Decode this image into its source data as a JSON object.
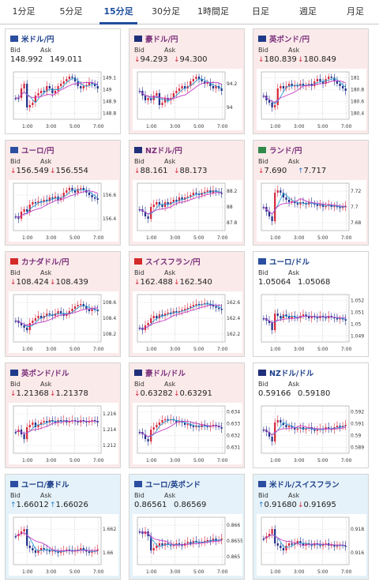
{
  "tabs": [
    "1分足",
    "5分足",
    "15分足",
    "30分足",
    "1時間足",
    "日足",
    "週足",
    "月足"
  ],
  "active_tab": 2,
  "labels": {
    "bid": "Bid",
    "ask": "Ask"
  },
  "colors": {
    "up": "#d6263a",
    "down": "#1f2f8a",
    "ma1": "#2a9fd6",
    "ma2": "#c43cc4",
    "accent": "#1f4e9e"
  },
  "x_ticks": [
    "1:00",
    "3:00",
    "5:00",
    "7:00"
  ],
  "cards": [
    {
      "name": "米ドル/円",
      "theme": "white",
      "flag": "us",
      "bid_dir": "",
      "ask_dir": "",
      "bid": "148.992",
      "ask": "149.011",
      "y_ticks": [
        "149.1",
        "149",
        "148.9",
        "148.8"
      ],
      "trend": [
        0.55,
        0.55,
        0.35,
        0.25,
        0.75,
        0.7,
        0.65,
        0.5,
        0.45,
        0.4,
        0.42,
        0.3,
        0.35,
        0.45,
        0.4,
        0.3,
        0.25,
        0.2,
        0.15,
        0.1,
        0.12,
        0.2,
        0.3,
        0.35,
        0.3,
        0.28,
        0.22,
        0.25,
        0.3,
        0.35
      ]
    },
    {
      "name": "豪ドル/円",
      "theme": "pink",
      "flag": "au",
      "bid_dir": "down",
      "ask_dir": "down",
      "bid": "94.293",
      "ask": "94.300",
      "y_ticks": [
        "94.2",
        "94"
      ],
      "trend": [
        0.4,
        0.5,
        0.6,
        0.55,
        0.6,
        0.5,
        0.45,
        0.7,
        0.65,
        0.55,
        0.6,
        0.55,
        0.45,
        0.4,
        0.35,
        0.3,
        0.35,
        0.3,
        0.2,
        0.15,
        0.1,
        0.15,
        0.2,
        0.25,
        0.22,
        0.3,
        0.35,
        0.3,
        0.35,
        0.4
      ]
    },
    {
      "name": "英ポンド/円",
      "theme": "pink",
      "flag": "gb",
      "bid_dir": "down",
      "ask_dir": "down",
      "bid": "180.839",
      "ask": "180.849",
      "y_ticks": [
        "181",
        "180.8",
        "180.6",
        "180.4"
      ],
      "trend": [
        0.5,
        0.6,
        0.65,
        0.75,
        0.7,
        0.35,
        0.3,
        0.35,
        0.3,
        0.25,
        0.3,
        0.28,
        0.3,
        0.25,
        0.3,
        0.28,
        0.25,
        0.3,
        0.2,
        0.15,
        0.2,
        0.25,
        0.15,
        0.1,
        0.12,
        0.2,
        0.25,
        0.3,
        0.35,
        0.4
      ]
    },
    {
      "name": "ユーロ/円",
      "theme": "pink",
      "flag": "eu",
      "bid_dir": "down",
      "ask_dir": "down",
      "bid": "156.549",
      "ask": "156.554",
      "y_ticks": [
        "156.6",
        "156.4"
      ],
      "trend": [
        0.7,
        0.75,
        0.6,
        0.55,
        0.6,
        0.45,
        0.4,
        0.42,
        0.38,
        0.4,
        0.35,
        0.38,
        0.3,
        0.32,
        0.28,
        0.35,
        0.3,
        0.2,
        0.15,
        0.1,
        0.15,
        0.2,
        0.12,
        0.1,
        0.15,
        0.2,
        0.25,
        0.3,
        0.32,
        0.35
      ]
    },
    {
      "name": "NZドル/円",
      "theme": "pink",
      "flag": "nz",
      "bid_dir": "down",
      "ask_dir": "down",
      "bid": "88.161",
      "ask": "88.173",
      "y_ticks": [
        "88.2",
        "88",
        "87.8"
      ],
      "trend": [
        0.55,
        0.6,
        0.7,
        0.75,
        0.5,
        0.45,
        0.4,
        0.45,
        0.5,
        0.4,
        0.45,
        0.4,
        0.35,
        0.38,
        0.3,
        0.35,
        0.3,
        0.28,
        0.25,
        0.2,
        0.22,
        0.25,
        0.2,
        0.18,
        0.15,
        0.2,
        0.15,
        0.18,
        0.2,
        0.22
      ]
    },
    {
      "name": "ランド/円",
      "theme": "pink",
      "flag": "za",
      "bid_dir": "down",
      "ask_dir": "up",
      "bid": "7.690",
      "ask": "7.717",
      "y_ticks": [
        "7.72",
        "7.7",
        "7.68"
      ],
      "trend": [
        0.5,
        0.6,
        0.7,
        0.8,
        0.2,
        0.15,
        0.2,
        0.3,
        0.35,
        0.4,
        0.38,
        0.42,
        0.45,
        0.4,
        0.42,
        0.45,
        0.4,
        0.42,
        0.45,
        0.48,
        0.45,
        0.5,
        0.48,
        0.45,
        0.5,
        0.48,
        0.5,
        0.52,
        0.5,
        0.48
      ]
    },
    {
      "name": "カナダドル/円",
      "theme": "pink",
      "flag": "ca",
      "bid_dir": "down",
      "ask_dir": "down",
      "bid": "108.424",
      "ask": "108.439",
      "y_ticks": [
        "108.6",
        "108.4",
        "108.2"
      ],
      "trend": [
        0.55,
        0.6,
        0.65,
        0.7,
        0.75,
        0.6,
        0.55,
        0.5,
        0.45,
        0.5,
        0.45,
        0.4,
        0.42,
        0.45,
        0.4,
        0.35,
        0.4,
        0.45,
        0.4,
        0.35,
        0.3,
        0.25,
        0.22,
        0.2,
        0.25,
        0.3,
        0.35,
        0.3,
        0.32,
        0.35
      ]
    },
    {
      "name": "スイスフラン/円",
      "theme": "pink",
      "flag": "ch",
      "bid_dir": "down",
      "ask_dir": "down",
      "bid": "162.488",
      "ask": "162.540",
      "y_ticks": [
        "162.6",
        "162.4",
        "162.2"
      ],
      "trend": [
        0.7,
        0.75,
        0.65,
        0.6,
        0.5,
        0.45,
        0.5,
        0.42,
        0.45,
        0.4,
        0.38,
        0.4,
        0.35,
        0.38,
        0.35,
        0.32,
        0.3,
        0.28,
        0.25,
        0.22,
        0.2,
        0.22,
        0.2,
        0.18,
        0.2,
        0.22,
        0.25,
        0.28,
        0.3,
        0.32
      ]
    },
    {
      "name": "ユーロ/ドル",
      "theme": "white",
      "flag": "eu",
      "bid_dir": "",
      "ask_dir": "",
      "bid": "1.05064",
      "ask": "1.05068",
      "y_ticks": [
        "1.052",
        "1.051",
        "1.05",
        "1.049"
      ],
      "trend": [
        0.5,
        0.55,
        0.6,
        0.75,
        0.4,
        0.45,
        0.5,
        0.42,
        0.45,
        0.5,
        0.45,
        0.48,
        0.5,
        0.45,
        0.42,
        0.45,
        0.5,
        0.45,
        0.48,
        0.5,
        0.45,
        0.48,
        0.5,
        0.45,
        0.48,
        0.5,
        0.52,
        0.5,
        0.52,
        0.55
      ]
    },
    {
      "name": "英ポンド/ドル",
      "theme": "pink",
      "flag": "gb",
      "bid_dir": "down",
      "ask_dir": "down",
      "bid": "1.21368",
      "ask": "1.21378",
      "y_ticks": [
        "1.216",
        "1.214",
        "1.212"
      ],
      "trend": [
        0.55,
        0.5,
        0.6,
        0.7,
        0.45,
        0.4,
        0.35,
        0.45,
        0.4,
        0.35,
        0.32,
        0.35,
        0.3,
        0.32,
        0.35,
        0.3,
        0.32,
        0.3,
        0.35,
        0.32,
        0.3,
        0.32,
        0.35,
        0.3,
        0.32,
        0.35,
        0.32,
        0.3,
        0.32,
        0.35
      ]
    },
    {
      "name": "豪ドル/ドル",
      "theme": "pink",
      "flag": "au",
      "bid_dir": "down",
      "ask_dir": "down",
      "bid": "0.63282",
      "ask": "0.63291",
      "y_ticks": [
        "0.634",
        "0.633",
        "0.632",
        "0.631"
      ],
      "trend": [
        0.55,
        0.6,
        0.7,
        0.75,
        0.5,
        0.45,
        0.4,
        0.35,
        0.3,
        0.28,
        0.3,
        0.28,
        0.3,
        0.35,
        0.32,
        0.35,
        0.4,
        0.38,
        0.42,
        0.45,
        0.42,
        0.45,
        0.4,
        0.42,
        0.45,
        0.42,
        0.4,
        0.42,
        0.45,
        0.48
      ]
    },
    {
      "name": "NZドル/ドル",
      "theme": "white",
      "flag": "nz",
      "bid_dir": "",
      "ask_dir": "",
      "bid": "0.59166",
      "ask": "0.59180",
      "y_ticks": [
        "0.592",
        "0.591",
        "0.59",
        "0.589"
      ],
      "trend": [
        0.5,
        0.55,
        0.65,
        0.75,
        0.35,
        0.3,
        0.35,
        0.4,
        0.45,
        0.42,
        0.45,
        0.5,
        0.48,
        0.45,
        0.5,
        0.48,
        0.45,
        0.5,
        0.52,
        0.5,
        0.48,
        0.5,
        0.45,
        0.48,
        0.5,
        0.45,
        0.42,
        0.45,
        0.42,
        0.4
      ]
    },
    {
      "name": "ユーロ/豪ドル",
      "theme": "blue",
      "flag": "eu",
      "bid_dir": "up",
      "ask_dir": "up",
      "bid": "1.66012",
      "ask": "1.66026",
      "y_ticks": [
        "1.662",
        "1.66"
      ],
      "trend": [
        0.4,
        0.35,
        0.3,
        0.25,
        0.6,
        0.65,
        0.7,
        0.75,
        0.7,
        0.65,
        0.68,
        0.7,
        0.72,
        0.7,
        0.72,
        0.75,
        0.72,
        0.7,
        0.68,
        0.7,
        0.72,
        0.7,
        0.68,
        0.65,
        0.7,
        0.72,
        0.75,
        0.72,
        0.7,
        0.68
      ]
    },
    {
      "name": "ユーロ/英ポンド",
      "theme": "blue",
      "flag": "eu",
      "bid_dir": "",
      "ask_dir": "",
      "bid": "0.86561",
      "ask": "0.86569",
      "y_ticks": [
        "0.866",
        "0.8655",
        "0.865"
      ],
      "trend": [
        0.3,
        0.35,
        0.3,
        0.4,
        0.7,
        0.65,
        0.6,
        0.55,
        0.6,
        0.55,
        0.58,
        0.6,
        0.58,
        0.55,
        0.58,
        0.6,
        0.55,
        0.52,
        0.55,
        0.5,
        0.52,
        0.55,
        0.52,
        0.5,
        0.48,
        0.5,
        0.45,
        0.5,
        0.48,
        0.45
      ]
    },
    {
      "name": "米ドル/スイスフラン",
      "theme": "blue",
      "flag": "us",
      "bid_dir": "up",
      "ask_dir": "down",
      "bid": "0.91680",
      "ask": "0.91695",
      "y_ticks": [
        "0.918",
        "0.916"
      ],
      "trend": [
        0.45,
        0.4,
        0.35,
        0.25,
        0.55,
        0.6,
        0.65,
        0.7,
        0.6,
        0.55,
        0.58,
        0.55,
        0.5,
        0.55,
        0.6,
        0.55,
        0.58,
        0.6,
        0.55,
        0.58,
        0.6,
        0.58,
        0.55,
        0.6,
        0.58,
        0.62,
        0.6,
        0.58,
        0.6,
        0.62
      ]
    }
  ]
}
